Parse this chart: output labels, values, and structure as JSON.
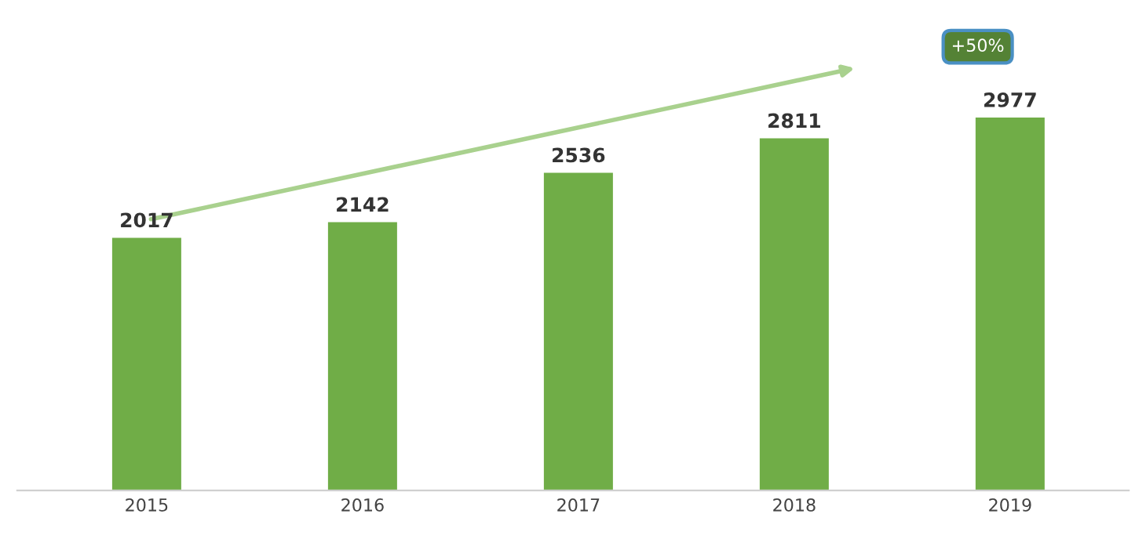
{
  "chart_data": {
    "type": "bar",
    "categories": [
      "2015",
      "2016",
      "2017",
      "2018",
      "2019"
    ],
    "values": [
      2017,
      2142,
      2536,
      2811,
      2977
    ],
    "color": "#70ad47",
    "data_labels": true,
    "annotations": [
      "+50%"
    ],
    "grid": false,
    "legend": false
  }
}
